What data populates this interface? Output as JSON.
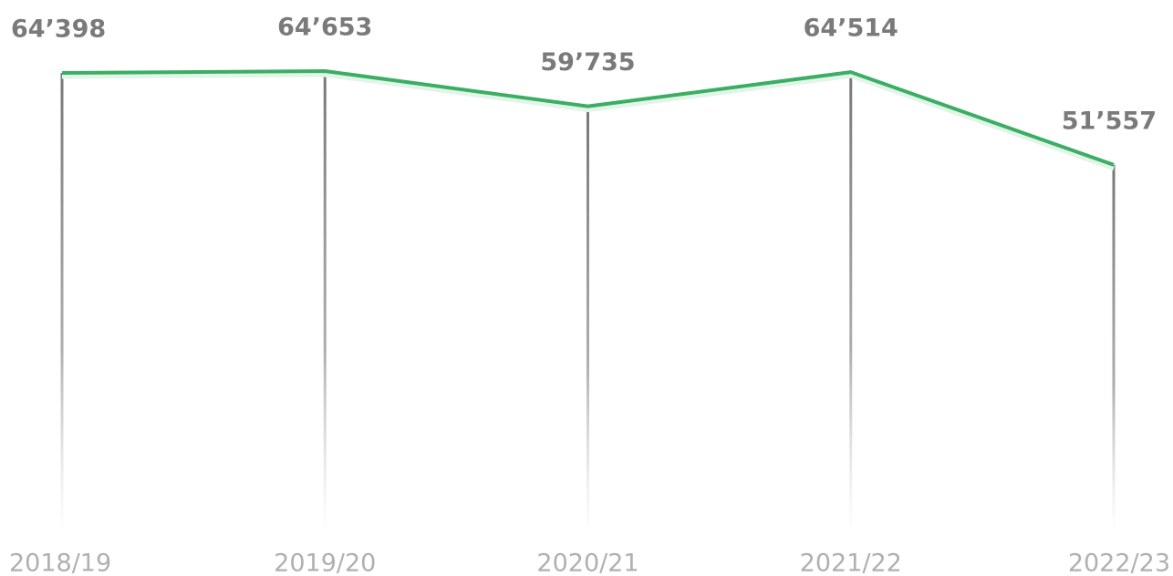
{
  "chart_data": {
    "type": "line",
    "categories": [
      "2018/19",
      "2019/20",
      "2020/21",
      "2021/22",
      "2022/23"
    ],
    "values": [
      64398,
      64653,
      59735,
      64514,
      51557
    ],
    "value_labels": [
      "64’398",
      "64’653",
      "59’735",
      "64’514",
      "51’557"
    ],
    "color": "#3aaf63",
    "ylim": [
      0,
      70000
    ]
  }
}
